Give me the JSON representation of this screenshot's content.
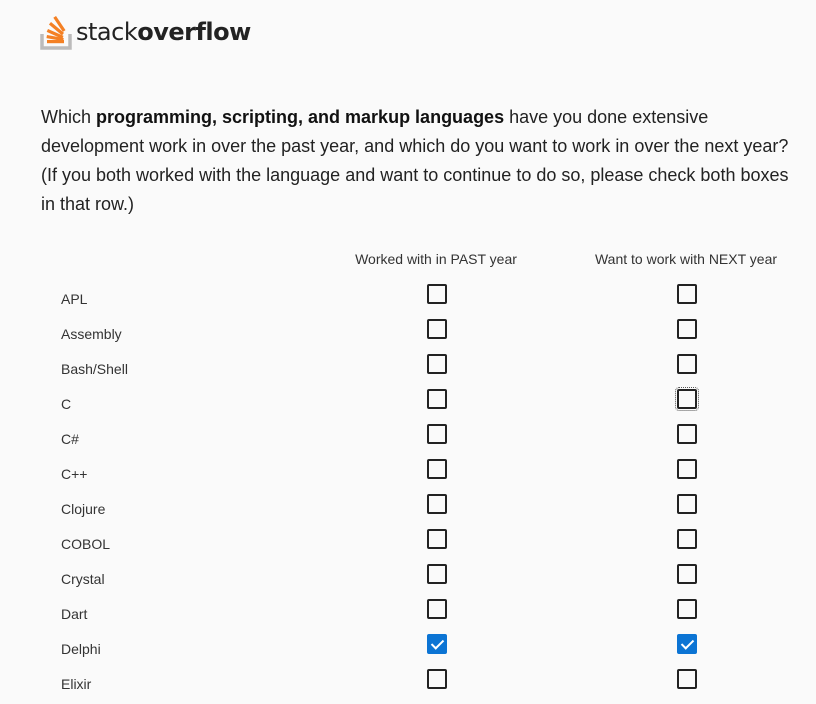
{
  "logo": {
    "text_light": "stack",
    "text_bold": "overflow",
    "accent": "#f48024"
  },
  "question": {
    "prefix": "Which ",
    "bold": "programming, scripting, and markup languages",
    "suffix": " have you done extensive development work in over the past year, and which do you want to work in over the next year? (If you both worked with the language and want to continue to do so, please check both boxes in that row.)"
  },
  "columns": {
    "past": "Worked with in PAST year",
    "next": "Want to work with NEXT year"
  },
  "check_color": "#0b74d4",
  "rows": [
    {
      "label": "APL",
      "past": false,
      "next": false
    },
    {
      "label": "Assembly",
      "past": false,
      "next": false
    },
    {
      "label": "Bash/Shell",
      "past": false,
      "next": false
    },
    {
      "label": "C",
      "past": false,
      "next": false,
      "next_focused": true
    },
    {
      "label": "C#",
      "past": false,
      "next": false
    },
    {
      "label": "C++",
      "past": false,
      "next": false
    },
    {
      "label": "Clojure",
      "past": false,
      "next": false
    },
    {
      "label": "COBOL",
      "past": false,
      "next": false
    },
    {
      "label": "Crystal",
      "past": false,
      "next": false
    },
    {
      "label": "Dart",
      "past": false,
      "next": false
    },
    {
      "label": "Delphi",
      "past": true,
      "next": true
    },
    {
      "label": "Elixir",
      "past": false,
      "next": false
    }
  ]
}
